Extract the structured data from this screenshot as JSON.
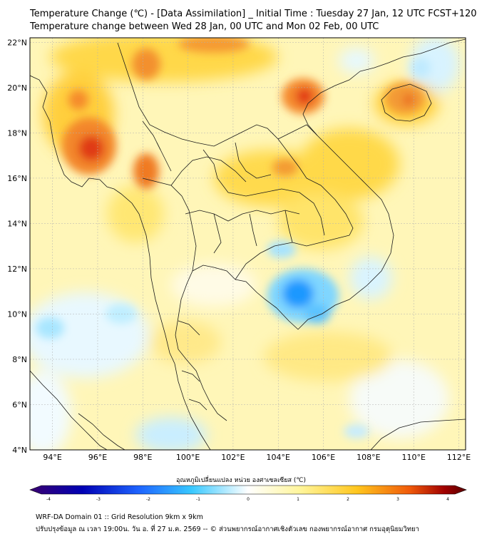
{
  "title": {
    "line1": "Temperature Change (℃) - [Data Assimilation] _ Initial Time : Tuesday 27 Jan, 12 UTC FCST+120",
    "line2": "Temperature change between Wed 28 Jan, 00 UTC and Mon 02 Feb, 00 UTC"
  },
  "map": {
    "lat_labels": [
      "22°N",
      "20°N",
      "18°N",
      "16°N",
      "14°N",
      "12°N",
      "10°N",
      "8°N",
      "6°N",
      "4°N"
    ],
    "lon_labels": [
      "94°E",
      "96°E",
      "98°E",
      "100°E",
      "102°E",
      "104°E",
      "106°E",
      "108°E",
      "110°E",
      "112°E"
    ],
    "lat_range": [
      4,
      22.2
    ],
    "lon_range": [
      93,
      112.3
    ]
  },
  "colorbar": {
    "label": "อุณหภูมิเปลี่ยนแปลง หน่วย องศาเซลเซียส (℃)",
    "tick_labels": [
      "-4",
      "-3",
      "-2",
      "-1",
      "0",
      "1",
      "2",
      "3",
      "4"
    ],
    "range": [
      -4,
      4
    ],
    "colors": [
      "#3a006f",
      "#0000b4",
      "#1e64ff",
      "#38c8ff",
      "#ffffff",
      "#fff59a",
      "#ffc61e",
      "#f05a0a",
      "#a00000",
      "#5a0000"
    ]
  },
  "footer": {
    "line1": "WRF-DA Domain 01 :: Grid Resolution 9km x 9km",
    "line2": "ปรับปรุงข้อมูล ณ เวลา 19:00น. วัน อ. ที่ 27 ม.ค. 2569 -- © ส่วนพยากรณ์อากาศเชิงตัวเลข กองพยากรณ์อากาศ กรมอุตุนิยมวิทยา"
  }
}
